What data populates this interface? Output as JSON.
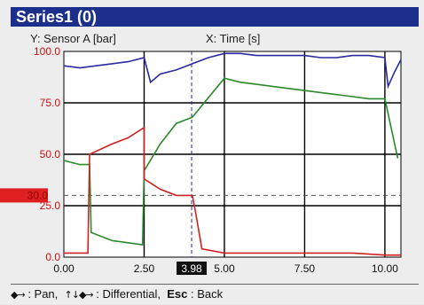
{
  "window": {
    "title": "Series1 (0)"
  },
  "header": {
    "y_label": "Y: Sensor A [bar]",
    "x_label": "X: Time [s]"
  },
  "cursor": {
    "x_readout": "3.98",
    "y_marker": "30.0"
  },
  "footer": {
    "pan_glyph": "◆→",
    "pan_text": ": Pan,",
    "diff_glyph": "↑↓◆→",
    "diff_text": ": Differential,",
    "esc_key": "Esc",
    "esc_text": ": Back"
  },
  "colors": {
    "title_bg": "#1c2f8a",
    "axis_labels": "#d01010",
    "marker": "#e02020",
    "grid": "#000000"
  },
  "chart_data": {
    "type": "line",
    "xlim": [
      0,
      10.5
    ],
    "ylim": [
      0,
      100
    ],
    "xticks": [
      "0.00",
      "2.50",
      "5.00",
      "7.50",
      "10.00"
    ],
    "yticks": [
      "100.0",
      "75.0",
      "50.0",
      "25.0",
      "0.0"
    ],
    "cursor_x": 3.98,
    "cursor_y": 30.0,
    "series": [
      {
        "color": "#2a2aa0",
        "x": [
          0,
          0.5,
          1,
          1.5,
          2,
          2.5,
          2.7,
          3.0,
          3.5,
          4,
          4.5,
          5,
          5.5,
          6,
          6.5,
          7,
          7.5,
          8,
          8.5,
          9,
          9.5,
          10,
          10.1,
          10.3,
          10.5
        ],
        "y": [
          93,
          92,
          93,
          94,
          95,
          97,
          85,
          89,
          91,
          94,
          97,
          99,
          99,
          98,
          98,
          98,
          98,
          97,
          97,
          98,
          98,
          97,
          83,
          90,
          96
        ]
      },
      {
        "color": "#2a8a2a",
        "x": [
          0,
          0.5,
          0.8,
          0.85,
          1.5,
          2.0,
          2.45,
          2.5,
          3.0,
          3.5,
          4,
          5,
          5.5,
          6,
          6.5,
          7,
          7.5,
          8,
          8.5,
          9,
          9.5,
          10,
          10.4
        ],
        "y": [
          47,
          45,
          45,
          12,
          8,
          7,
          6,
          42,
          55,
          65,
          68,
          87,
          85,
          84,
          83,
          82,
          81,
          80,
          79,
          78,
          77,
          77,
          48
        ]
      },
      {
        "color": "#d02020",
        "x": [
          0,
          0.75,
          0.8,
          1.5,
          2.0,
          2.5,
          2.5,
          3.0,
          3.5,
          4.0,
          4.1,
          4.3,
          5,
          6,
          7,
          8,
          9,
          10,
          10.5
        ],
        "y": [
          2,
          2,
          50,
          55,
          58,
          63,
          38,
          33,
          30,
          30,
          22,
          4,
          2,
          2,
          2,
          2,
          2,
          1,
          1
        ]
      }
    ]
  }
}
